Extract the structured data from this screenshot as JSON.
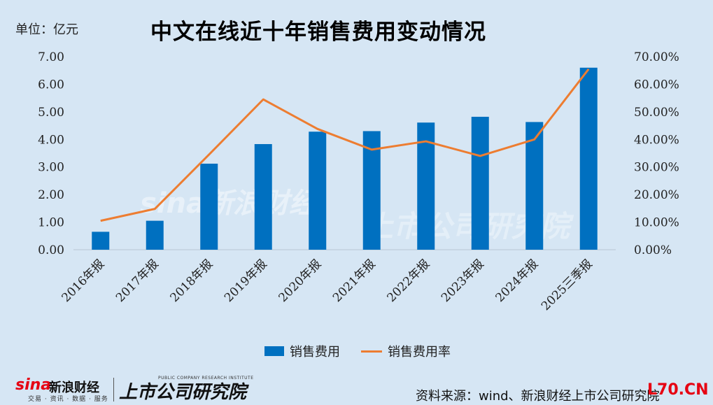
{
  "unit_label": "单位：亿元",
  "title": "中文在线近十年销售费用变动情况",
  "chart_data": {
    "type": "bar",
    "categories": [
      "2016年报",
      "2017年报",
      "2018年报",
      "2019年报",
      "2020年报",
      "2021年报",
      "2022年报",
      "2023年报",
      "2024年报",
      "2025三季报"
    ],
    "series": [
      {
        "name": "销售费用",
        "type": "bar",
        "axis": "left",
        "color": "#0070c0",
        "values": [
          0.65,
          1.05,
          3.12,
          3.83,
          4.28,
          4.3,
          4.61,
          4.82,
          4.63,
          6.6
        ]
      },
      {
        "name": "销售费用率",
        "type": "line",
        "axis": "right",
        "color": "#ed7d31",
        "values": [
          10.5,
          14.8,
          34.5,
          54.5,
          43.8,
          36.3,
          39.3,
          34.0,
          40.0,
          65.5
        ]
      }
    ],
    "left_axis": {
      "min": 0,
      "max": 7,
      "step": 1,
      "tick_labels": [
        "0.00",
        "1.00",
        "2.00",
        "3.00",
        "4.00",
        "5.00",
        "6.00",
        "7.00"
      ]
    },
    "right_axis": {
      "min": 0,
      "max": 70,
      "step": 10,
      "tick_labels": [
        "0.00%",
        "10.00%",
        "20.00%",
        "30.00%",
        "40.00%",
        "50.00%",
        "60.00%",
        "70.00%"
      ]
    },
    "grid": false,
    "legend_position": "bottom"
  },
  "legend": {
    "bar_label": "销售费用",
    "line_label": "销售费用率"
  },
  "source": "资料来源：wind、新浪财经上市公司研究院",
  "logos": {
    "sina": "sina",
    "sina_name": "新浪财经",
    "sina_tag": "交易 · 资讯 · 数据 · 服务",
    "research": "上市公司研究院",
    "research_tag": "PUBLIC COMPANY RESEARCH INSTITUTE"
  },
  "corner_tag": "L70.CN",
  "watermark": {
    "sina": "sina新浪财经",
    "research": "上市公司研究院"
  }
}
